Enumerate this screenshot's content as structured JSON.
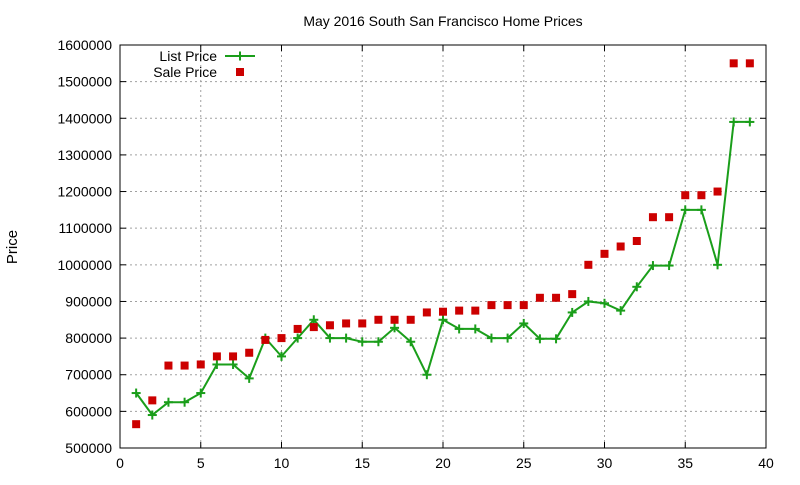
{
  "chart_data": {
    "type": "line",
    "title": "May 2016 South San Francisco Home Prices",
    "xlabel": "",
    "ylabel": "Price",
    "xlim": [
      0,
      40
    ],
    "ylim": [
      500000,
      1600000
    ],
    "xticks": [
      0,
      5,
      10,
      15,
      20,
      25,
      30,
      35,
      40
    ],
    "yticks": [
      500000,
      600000,
      700000,
      800000,
      900000,
      1000000,
      1100000,
      1200000,
      1300000,
      1400000,
      1500000,
      1600000
    ],
    "grid": true,
    "legend_position": "top-left",
    "series": [
      {
        "name": "List Price",
        "style": "line-plus",
        "color": "#1a9e1a",
        "x": [
          1,
          2,
          3,
          4,
          5,
          6,
          7,
          8,
          9,
          10,
          11,
          12,
          13,
          14,
          15,
          16,
          17,
          18,
          19,
          20,
          21,
          22,
          23,
          24,
          25,
          26,
          27,
          28,
          29,
          30,
          31,
          32,
          33,
          34,
          35,
          36,
          37,
          38,
          39
        ],
        "y": [
          650000,
          590000,
          625000,
          625000,
          650000,
          728000,
          728000,
          690000,
          800000,
          750000,
          800000,
          850000,
          800000,
          800000,
          790000,
          790000,
          828000,
          790000,
          700000,
          850000,
          825000,
          825000,
          800000,
          800000,
          840000,
          798000,
          798000,
          870000,
          900000,
          895000,
          875000,
          940000,
          998000,
          998000,
          1150000,
          1150000,
          1000000,
          1390000,
          1390000
        ]
      },
      {
        "name": "Sale Price",
        "style": "square",
        "color": "#cc0000",
        "x": [
          1,
          2,
          3,
          4,
          5,
          6,
          7,
          8,
          9,
          10,
          11,
          12,
          13,
          14,
          15,
          16,
          17,
          18,
          19,
          20,
          21,
          22,
          23,
          24,
          25,
          26,
          27,
          28,
          29,
          30,
          31,
          32,
          33,
          34,
          35,
          36,
          37,
          38,
          39
        ],
        "y": [
          565000,
          630000,
          725000,
          725000,
          728000,
          750000,
          750000,
          760000,
          795000,
          800000,
          825000,
          830000,
          835000,
          840000,
          840000,
          850000,
          850000,
          850000,
          870000,
          872000,
          875000,
          875000,
          890000,
          890000,
          890000,
          910000,
          910000,
          920000,
          1000000,
          1030000,
          1050000,
          1065000,
          1130000,
          1130000,
          1190000,
          1190000,
          1200000,
          1550000,
          1550000
        ]
      }
    ]
  }
}
